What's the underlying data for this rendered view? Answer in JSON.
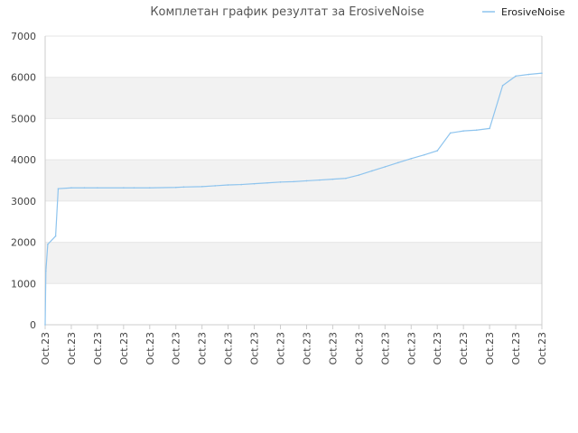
{
  "chart_data": {
    "type": "line",
    "title": "Комплетан график резултат за ErosiveNoise",
    "xlabel": "",
    "ylabel": "",
    "ylim": [
      0,
      7000
    ],
    "y_ticks": [
      0,
      1000,
      2000,
      3000,
      4000,
      5000,
      6000,
      7000
    ],
    "x_tick_labels": [
      "Oct.23",
      "Oct.23",
      "Oct.23",
      "Oct.23",
      "Oct.23",
      "Oct.23",
      "Oct.23",
      "Oct.23",
      "Oct.23",
      "Oct.23",
      "Oct.23",
      "Oct.23",
      "Oct.23",
      "Oct.23",
      "Oct.23",
      "Oct.23",
      "Oct.23",
      "Oct.23",
      "Oct.23",
      "Oct.23"
    ],
    "grid": "horizontal alternating bands",
    "legend_position": "top-right",
    "colors": {
      "series": "#8ec4ee",
      "band": "#f2f2f2",
      "axis": "#cccccc"
    },
    "series": [
      {
        "name": "ErosiveNoise",
        "x": [
          0.0,
          0.028,
          0.1,
          0.4,
          0.5,
          1.0,
          1.5,
          2.0,
          3.0,
          3.4,
          4.0,
          5.0,
          5.3,
          6.0,
          6.5,
          7.0,
          7.5,
          8.0,
          8.5,
          9.0,
          9.5,
          10.0,
          10.5,
          11.0,
          11.5,
          12.0,
          12.5,
          13.0,
          13.5,
          14.0,
          14.5,
          15.0,
          15.5,
          16.0,
          16.5,
          17.0,
          17.5,
          18.0,
          18.5,
          19.0
        ],
        "values": [
          0,
          1300,
          1950,
          2150,
          3300,
          3320,
          3320,
          3320,
          3320,
          3320,
          3320,
          3330,
          3340,
          3350,
          3370,
          3390,
          3400,
          3420,
          3440,
          3460,
          3470,
          3490,
          3510,
          3530,
          3550,
          3630,
          3730,
          3830,
          3930,
          4030,
          4120,
          4220,
          4650,
          4700,
          4720,
          4760,
          5800,
          6030,
          6070,
          6100
        ]
      }
    ]
  }
}
